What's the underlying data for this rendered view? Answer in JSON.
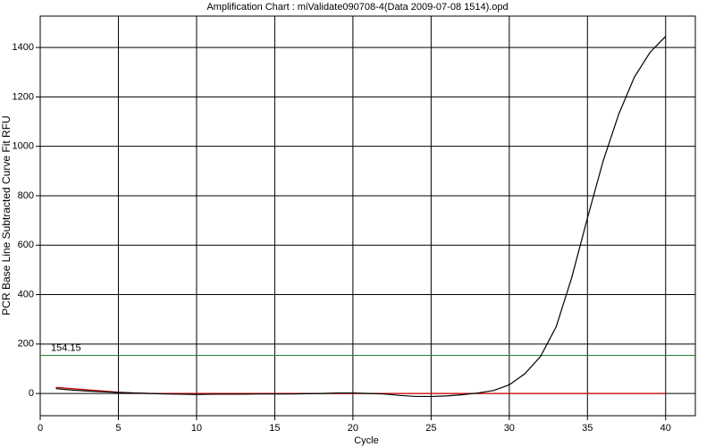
{
  "chart_data": {
    "type": "line",
    "title": "Amplification Chart : miValidate090708-4(Data 2009-07-08 1514).opd",
    "x_label": "Cycle",
    "y_label": "PCR Base Line Subtracted Curve Fit RFU",
    "x": [
      1,
      2,
      3,
      4,
      5,
      6,
      7,
      8,
      9,
      10,
      11,
      12,
      13,
      14,
      15,
      16,
      17,
      18,
      19,
      20,
      21,
      22,
      23,
      24,
      25,
      26,
      27,
      28,
      29,
      30,
      31,
      32,
      33,
      34,
      35,
      36,
      37,
      38,
      39,
      40
    ],
    "series": [
      {
        "color": "#000000",
        "values": [
          20,
          14,
          10,
          7,
          4,
          2,
          0,
          -2,
          -3,
          -4,
          -3,
          -3,
          -3,
          -2,
          -2,
          -2,
          -1,
          0,
          2,
          2,
          0,
          -2,
          -8,
          -12,
          -12,
          -10,
          -5,
          2,
          12,
          35,
          80,
          150,
          270,
          470,
          710,
          940,
          1130,
          1280,
          1380,
          1445
        ]
      },
      {
        "color": "#cc0000",
        "values": [
          25,
          20,
          15,
          10,
          5,
          2,
          0,
          0,
          0,
          0,
          0,
          0,
          0,
          0,
          0,
          0,
          0,
          0,
          0,
          0,
          0,
          0,
          0,
          0,
          0,
          0,
          0,
          0,
          0,
          0,
          0,
          0,
          0,
          0,
          0,
          0,
          0,
          0,
          0,
          0
        ]
      }
    ],
    "threshold": 154.15,
    "threshold_color": "#2e7d32",
    "xlim": [
      0,
      41.9
    ],
    "ylim": [
      -90,
      1527
    ],
    "xticks": [
      0,
      5,
      10,
      15,
      20,
      25,
      30,
      35,
      40
    ],
    "yticks": [
      0,
      200,
      400,
      600,
      800,
      1000,
      1200,
      1400
    ],
    "grid": true
  }
}
